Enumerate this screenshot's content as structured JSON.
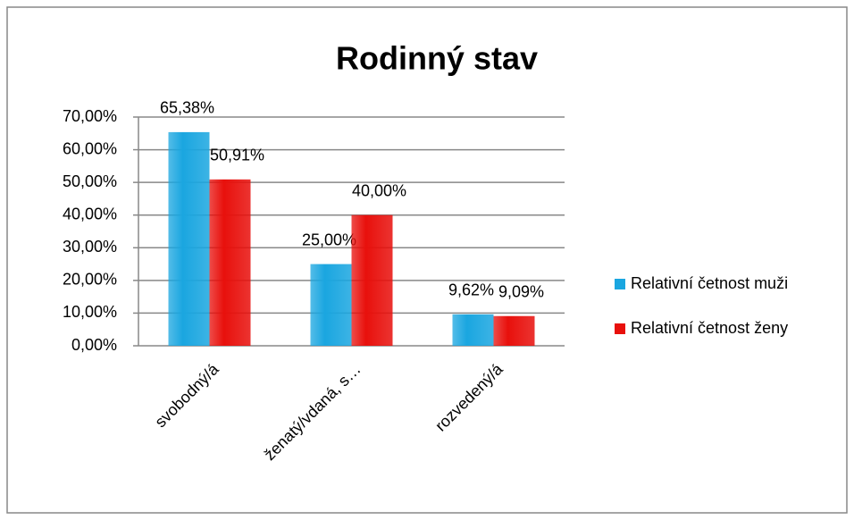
{
  "chart_data": {
    "type": "bar",
    "title": "Rodinný stav",
    "categories": [
      "svobodný/á",
      "ženatý/vdaná, s…",
      "rozvedený/á"
    ],
    "series": [
      {
        "name": "Relativní četnost muži",
        "color": "#1aa6e0",
        "values": [
          65.38,
          25,
          9.62
        ],
        "value_labels": [
          "65,38%",
          "25,00%",
          "9,62%"
        ]
      },
      {
        "name": "Relativní četnost ženy",
        "color": "#e8100c",
        "values": [
          50.91,
          40,
          9.09
        ],
        "value_labels": [
          "50,91%",
          "40,00%",
          "9,09%"
        ]
      }
    ],
    "ylim": [
      0,
      70
    ],
    "yticks": [
      {
        "value": 0,
        "label": "0,00%"
      },
      {
        "value": 10,
        "label": "10,00%"
      },
      {
        "value": 20,
        "label": "20,00%"
      },
      {
        "value": 30,
        "label": "30,00%"
      },
      {
        "value": 40,
        "label": "40,00%"
      },
      {
        "value": 50,
        "label": "50,00%"
      },
      {
        "value": 60,
        "label": "60,00%"
      },
      {
        "value": 70,
        "label": "70,00%"
      }
    ],
    "grid": true,
    "legend": "right"
  }
}
